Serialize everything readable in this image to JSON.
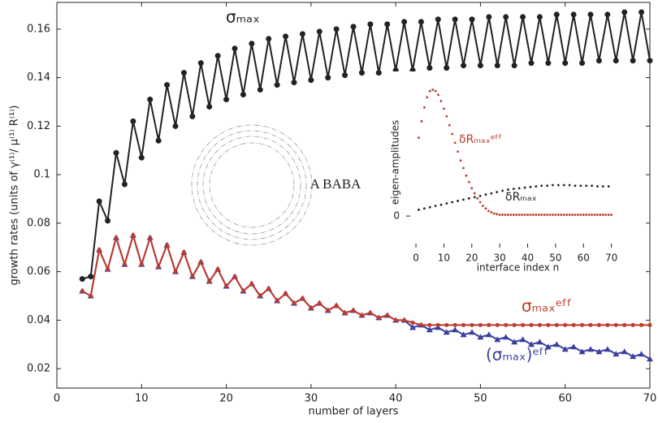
{
  "chart_data": [
    {
      "type": "line",
      "xlabel": "number of layers",
      "ylabel": "growth rates (units of γ⁽¹⁾/ μ⁽¹⁾ R⁽¹⁾)",
      "xlim": [
        0,
        70
      ],
      "ylim": [
        0.012,
        0.171
      ],
      "xticks": [
        0,
        10,
        20,
        30,
        40,
        50,
        60,
        70
      ],
      "yticks": [
        0.02,
        0.04,
        0.06,
        0.08,
        0.1,
        0.12,
        0.14,
        0.16
      ],
      "annotation": "A BABA",
      "x": [
        3,
        4,
        5,
        6,
        7,
        8,
        9,
        10,
        11,
        12,
        13,
        14,
        15,
        16,
        17,
        18,
        19,
        20,
        21,
        22,
        23,
        24,
        25,
        26,
        27,
        28,
        29,
        30,
        31,
        32,
        33,
        34,
        35,
        36,
        37,
        38,
        39,
        40,
        41,
        42,
        43,
        44,
        45,
        46,
        47,
        48,
        49,
        50,
        51,
        52,
        53,
        54,
        55,
        56,
        57,
        58,
        59,
        60,
        61,
        62,
        63,
        64,
        65,
        66,
        67,
        68,
        69,
        70
      ],
      "series": [
        {
          "name": "σₘₐₓ",
          "color": "#222222",
          "marker": "circle",
          "values": [
            0.057,
            0.058,
            0.089,
            0.081,
            0.109,
            0.096,
            0.122,
            0.107,
            0.131,
            0.114,
            0.137,
            0.12,
            0.142,
            0.124,
            0.146,
            0.128,
            0.149,
            0.131,
            0.152,
            0.133,
            0.154,
            0.135,
            0.156,
            0.137,
            0.157,
            0.138,
            0.158,
            0.139,
            0.159,
            0.14,
            0.16,
            0.141,
            0.161,
            0.142,
            0.162,
            0.142,
            0.162,
            0.143,
            0.163,
            0.143,
            0.163,
            0.144,
            0.164,
            0.144,
            0.164,
            0.145,
            0.164,
            0.145,
            0.165,
            0.145,
            0.165,
            0.145,
            0.165,
            0.146,
            0.165,
            0.146,
            0.166,
            0.146,
            0.166,
            0.146,
            0.166,
            0.147,
            0.166,
            0.147,
            0.167,
            0.147,
            0.167,
            0.147
          ]
        },
        {
          "name": "(σₘₐₓ)ᵉᶠᶠ",
          "color": "#3a3fa0",
          "marker": "triangle",
          "values": [
            0.052,
            0.05,
            0.069,
            0.061,
            0.074,
            0.063,
            0.075,
            0.063,
            0.074,
            0.062,
            0.071,
            0.06,
            0.068,
            0.058,
            0.064,
            0.056,
            0.061,
            0.054,
            0.058,
            0.052,
            0.055,
            0.05,
            0.053,
            0.048,
            0.051,
            0.047,
            0.049,
            0.045,
            0.047,
            0.044,
            0.046,
            0.043,
            0.044,
            0.042,
            0.043,
            0.041,
            0.042,
            0.04,
            0.04,
            0.037,
            0.038,
            0.036,
            0.037,
            0.035,
            0.036,
            0.034,
            0.035,
            0.033,
            0.034,
            0.032,
            0.033,
            0.031,
            0.032,
            0.03,
            0.031,
            0.029,
            0.03,
            0.028,
            0.029,
            0.027,
            0.028,
            0.027,
            0.028,
            0.026,
            0.027,
            0.025,
            0.026,
            0.024
          ]
        },
        {
          "name": "σₘₐₓᵉᶠᶠ",
          "color": "#c0392b",
          "marker": "circle",
          "values": [
            0.052,
            0.05,
            0.069,
            0.061,
            0.074,
            0.063,
            0.075,
            0.063,
            0.074,
            0.062,
            0.071,
            0.06,
            0.068,
            0.058,
            0.064,
            0.056,
            0.061,
            0.054,
            0.058,
            0.052,
            0.055,
            0.05,
            0.053,
            0.048,
            0.051,
            0.047,
            0.049,
            0.045,
            0.047,
            0.044,
            0.046,
            0.043,
            0.044,
            0.042,
            0.043,
            0.041,
            0.042,
            0.04,
            0.04,
            0.039,
            0.038,
            0.038,
            0.038,
            0.038,
            0.038,
            0.038,
            0.038,
            0.038,
            0.038,
            0.038,
            0.038,
            0.038,
            0.038,
            0.038,
            0.038,
            0.038,
            0.038,
            0.038,
            0.038,
            0.038,
            0.038,
            0.038,
            0.038,
            0.038,
            0.038,
            0.038,
            0.038,
            0.038
          ]
        }
      ]
    },
    {
      "type": "scatter",
      "xlabel": "interface index n",
      "ylabel": "eigen-amplitudes",
      "xlim": [
        -3.5,
        76.5
      ],
      "ylim": [
        -0.25,
        1.1
      ],
      "xticks": [
        0,
        10,
        20,
        30,
        40,
        50,
        60,
        70
      ],
      "yticks": [
        0
      ],
      "series": [
        {
          "name": "δRₘₐₓᵉᶠᶠ",
          "color": "#c0392b",
          "x": [
            1,
            2,
            3,
            4,
            5,
            6,
            7,
            8,
            9,
            10,
            11,
            12,
            13,
            14,
            15,
            16,
            17,
            18,
            19,
            20,
            21,
            22,
            23,
            24,
            25,
            26,
            27,
            28,
            29,
            30,
            31,
            32,
            33,
            34,
            35,
            36,
            37,
            38,
            39,
            40,
            41,
            42,
            43,
            44,
            45,
            46,
            47,
            48,
            49,
            50,
            51,
            52,
            53,
            54,
            55,
            56,
            57,
            58,
            59,
            60,
            61,
            62,
            63,
            64,
            65,
            66,
            67,
            68,
            69,
            70
          ],
          "values": [
            0.62,
            0.75,
            0.86,
            0.94,
            0.99,
            1.0,
            0.99,
            0.96,
            0.91,
            0.85,
            0.79,
            0.72,
            0.65,
            0.58,
            0.51,
            0.44,
            0.38,
            0.32,
            0.27,
            0.22,
            0.18,
            0.14,
            0.11,
            0.08,
            0.06,
            0.04,
            0.03,
            0.02,
            0.015,
            0.01,
            0.01,
            0.01,
            0.01,
            0.01,
            0.01,
            0.01,
            0.01,
            0.01,
            0.01,
            0.01,
            0.01,
            0.01,
            0.01,
            0.01,
            0.01,
            0.01,
            0.01,
            0.01,
            0.01,
            0.01,
            0.01,
            0.01,
            0.01,
            0.01,
            0.01,
            0.01,
            0.01,
            0.01,
            0.01,
            0.01,
            0.01,
            0.01,
            0.01,
            0.01,
            0.01,
            0.01,
            0.01,
            0.01,
            0.01,
            0.01
          ]
        },
        {
          "name": "δRₘₐₓ",
          "color": "#222222",
          "x": [
            1,
            3,
            5,
            7,
            9,
            11,
            13,
            15,
            17,
            19,
            21,
            23,
            25,
            27,
            29,
            31,
            33,
            35,
            37,
            39,
            41,
            43,
            45,
            47,
            49,
            51,
            53,
            55,
            57,
            59,
            61,
            63,
            65,
            67,
            69
          ],
          "values": [
            0.05,
            0.06,
            0.07,
            0.08,
            0.09,
            0.1,
            0.11,
            0.12,
            0.13,
            0.14,
            0.15,
            0.16,
            0.17,
            0.18,
            0.19,
            0.2,
            0.21,
            0.215,
            0.22,
            0.225,
            0.23,
            0.235,
            0.24,
            0.24,
            0.245,
            0.245,
            0.245,
            0.245,
            0.24,
            0.24,
            0.24,
            0.24,
            0.235,
            0.235,
            0.235
          ]
        }
      ]
    }
  ]
}
